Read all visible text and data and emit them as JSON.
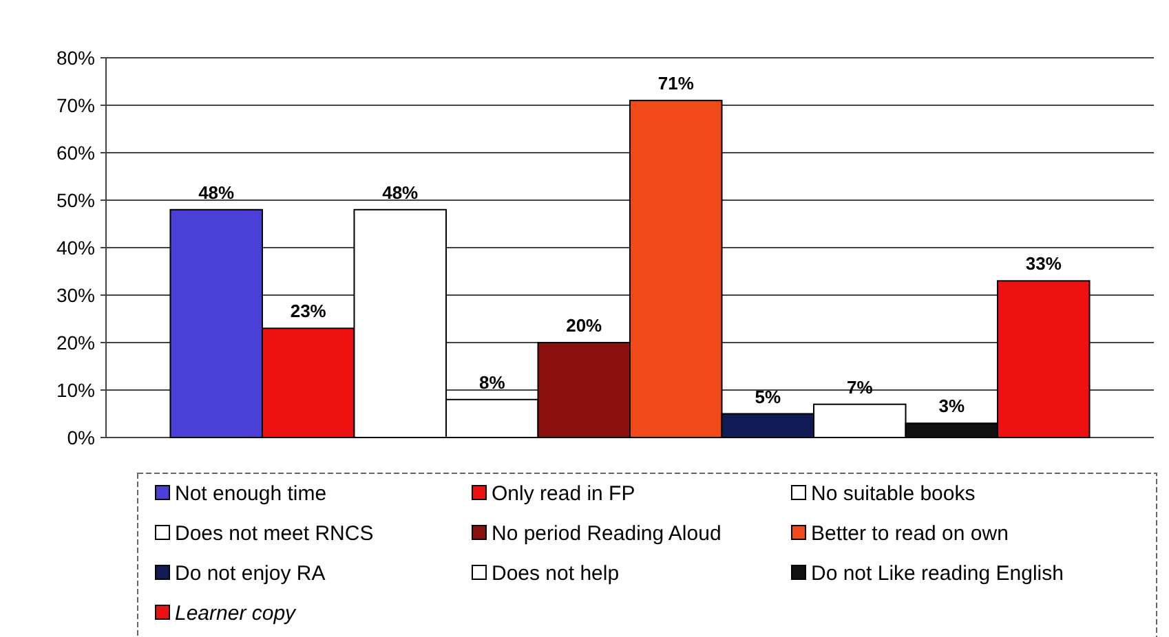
{
  "chart_data": {
    "type": "bar",
    "categories": [
      null
    ],
    "series": [
      {
        "name": "Not enough time",
        "color": "#4a3fd6",
        "values": [
          48
        ],
        "value_labels": [
          "48%"
        ]
      },
      {
        "name": "Only read in FP",
        "color": "#ee1111",
        "values": [
          23
        ],
        "value_labels": [
          "23%"
        ]
      },
      {
        "name": "No suitable books",
        "color": "#ffffff",
        "values": [
          48
        ],
        "value_labels": [
          "48%"
        ]
      },
      {
        "name": "Does not meet RNCS",
        "color": "#ffffff",
        "values": [
          8
        ],
        "value_labels": [
          "8%"
        ]
      },
      {
        "name": "No period Reading Aloud",
        "color": "#8b1010",
        "values": [
          20
        ],
        "value_labels": [
          "20%"
        ]
      },
      {
        "name": "Better to read on own",
        "color": "#f04a1a",
        "values": [
          71
        ],
        "value_labels": [
          "71%"
        ]
      },
      {
        "name": "Do not enjoy RA",
        "color": "#121a55",
        "values": [
          5
        ],
        "value_labels": [
          "5%"
        ]
      },
      {
        "name": "Does not help",
        "color": "#ffffff",
        "values": [
          7
        ],
        "value_labels": [
          "7%"
        ]
      },
      {
        "name": "Do not Like reading English",
        "color": "#111111",
        "values": [
          3
        ],
        "value_labels": [
          "3%"
        ]
      },
      {
        "name": "Learner copy",
        "color": "#ee1111",
        "values": [
          33
        ],
        "value_labels": [
          "33%"
        ]
      }
    ],
    "ylim": [
      0,
      80
    ],
    "yticks": [
      {
        "value": 0,
        "label": "0%"
      },
      {
        "value": 10,
        "label": "10%"
      },
      {
        "value": 20,
        "label": "20%"
      },
      {
        "value": 30,
        "label": "30%"
      },
      {
        "value": 40,
        "label": "40%"
      },
      {
        "value": 50,
        "label": "50%"
      },
      {
        "value": 60,
        "label": "60%"
      },
      {
        "value": 70,
        "label": "70%"
      },
      {
        "value": 80,
        "label": "80%"
      }
    ],
    "grid": "y",
    "legend": "bottom"
  }
}
